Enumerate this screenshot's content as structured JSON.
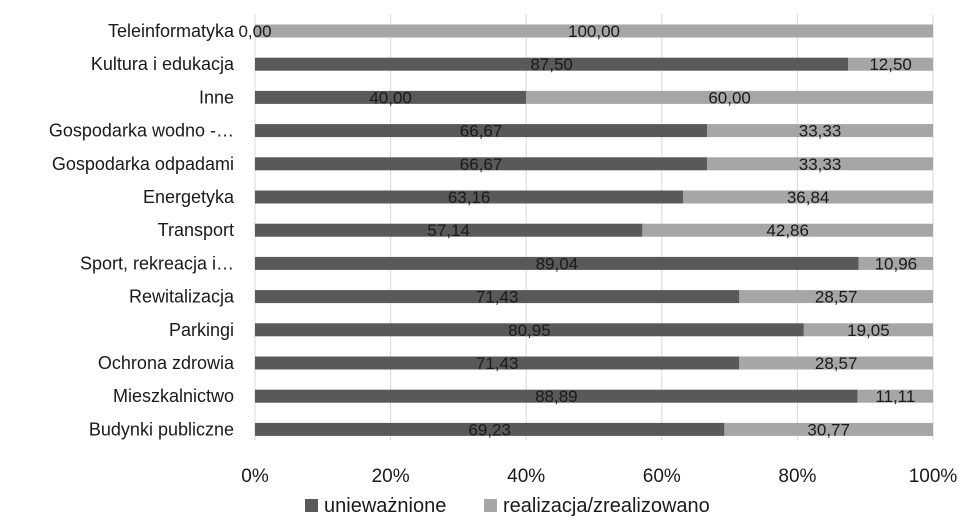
{
  "chart_data": {
    "type": "bar",
    "orientation": "horizontal",
    "stacked": "percent",
    "categories": [
      "Teleinformatyka",
      "Kultura i edukacja",
      "Inne",
      "Gospodarka wodno -…",
      "Gospodarka odpadami",
      "Energetyka",
      "Transport",
      "Sport, rekreacja i…",
      "Rewitalizacja",
      "Parkingi",
      "Ochrona zdrowia",
      "Mieszkalnictwo",
      "Budynki publiczne"
    ],
    "series": [
      {
        "name": "unieważnione",
        "color": "#595959",
        "values": [
          0.0,
          87.5,
          40.0,
          66.67,
          66.67,
          63.16,
          57.14,
          89.04,
          71.43,
          80.95,
          71.43,
          88.89,
          69.23
        ],
        "labels": [
          "0,00",
          "87,50",
          "40,00",
          "66,67",
          "66,67",
          "63,16",
          "57,14",
          "89,04",
          "71,43",
          "80,95",
          "71,43",
          "88,89",
          "69,23"
        ]
      },
      {
        "name": "realizacja/zrealizowano",
        "color": "#a6a6a6",
        "values": [
          100.0,
          12.5,
          60.0,
          33.33,
          33.33,
          36.84,
          42.86,
          10.96,
          28.57,
          19.05,
          28.57,
          11.11,
          30.77
        ],
        "labels": [
          "100,00",
          "12,50",
          "60,00",
          "33,33",
          "33,33",
          "36,84",
          "42,86",
          "10,96",
          "28,57",
          "19,05",
          "28,57",
          "11,11",
          "30,77"
        ]
      }
    ],
    "xaxis": {
      "range": [
        0,
        100
      ],
      "ticks": [
        0,
        20,
        40,
        60,
        80,
        100
      ],
      "tick_labels": [
        "0%",
        "20%",
        "40%",
        "60%",
        "80%",
        "100%"
      ]
    },
    "grid": true,
    "legend": "bottom",
    "title": "",
    "xlabel": "",
    "ylabel": ""
  }
}
